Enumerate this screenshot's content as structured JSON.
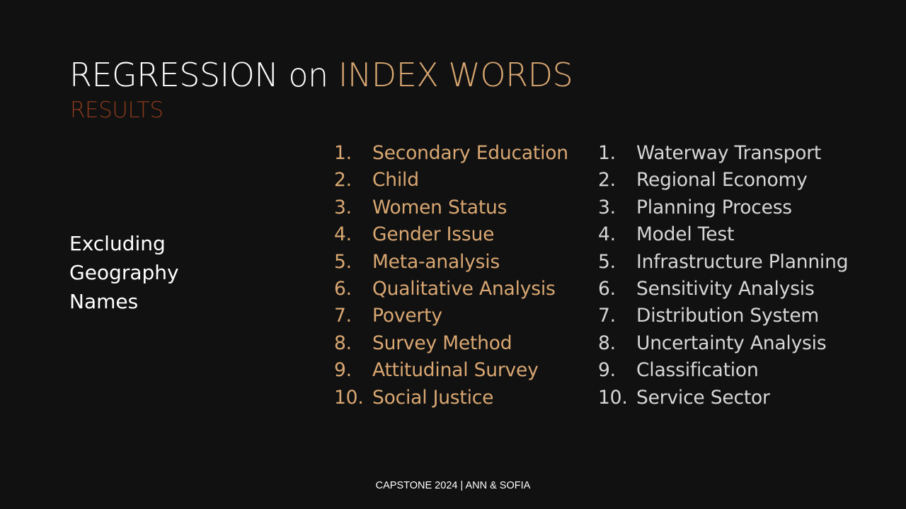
{
  "slide": {
    "title_part1": "REGRESSION on ",
    "title_part2": "INDEX WORDS",
    "subtitle": "RESULTS",
    "side_note": "Excluding\nGeography\nNames",
    "left_list": [
      {
        "num": "1.",
        "label": "Secondary Education"
      },
      {
        "num": "2.",
        "label": "Child"
      },
      {
        "num": "3.",
        "label": "Women Status"
      },
      {
        "num": "4.",
        "label": "Gender Issue"
      },
      {
        "num": "5.",
        "label": "Meta-analysis"
      },
      {
        "num": "6.",
        "label": "Qualitative Analysis"
      },
      {
        "num": "7.",
        "label": "Poverty"
      },
      {
        "num": "8.",
        "label": "Survey Method"
      },
      {
        "num": "9.",
        "label": "Attitudinal Survey"
      },
      {
        "num": "10.",
        "label": "Social Justice"
      }
    ],
    "right_list": [
      {
        "num": "1.",
        "label": "Waterway Transport"
      },
      {
        "num": "2.",
        "label": "Regional Economy"
      },
      {
        "num": "3.",
        "label": "Planning Process"
      },
      {
        "num": "4.",
        "label": "Model Test"
      },
      {
        "num": "5.",
        "label": "Infrastructure Planning"
      },
      {
        "num": "6.",
        "label": "Sensitivity Analysis"
      },
      {
        "num": "7.",
        "label": "Distribution System"
      },
      {
        "num": "8.",
        "label": "Uncertainty Analysis"
      },
      {
        "num": "9.",
        "label": "Classification"
      },
      {
        "num": "10.",
        "label": "Service Sector"
      }
    ],
    "footer": "CAPSTONE 2024 | ANN & SOFIA"
  },
  "colors": {
    "background": "#111111",
    "accent": "#d9a772",
    "subtitle": "#8b3a1c",
    "right_list_text": "#d6d6d6"
  }
}
